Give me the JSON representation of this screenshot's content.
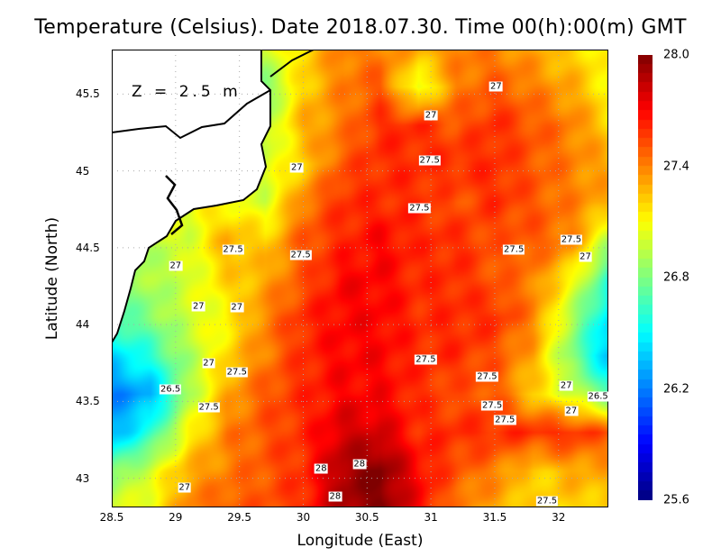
{
  "chart_data": {
    "type": "heatmap",
    "title": "Temperature (Celsius). Date 2018.07.30. Time 00(h):00(m)  GMT",
    "xlabel": "Longitude (East)",
    "ylabel": "Latitude (North)",
    "annotation": "Z = 2.5 m",
    "xlim": [
      28.5,
      32.39
    ],
    "ylim": [
      42.81,
      45.79
    ],
    "xticks": [
      "28.5",
      "29",
      "29.5",
      "30",
      "30.5",
      "31",
      "31.5",
      "32"
    ],
    "xtick_values": [
      28.5,
      29,
      29.5,
      30,
      30.5,
      31,
      31.5,
      32
    ],
    "yticks": [
      "45.5",
      "45",
      "44.5",
      "44",
      "43.5",
      "43"
    ],
    "ytick_values": [
      45.5,
      45,
      44.5,
      44,
      43.5,
      43
    ],
    "grid": true,
    "colorbar": {
      "min": 25.6,
      "max": 28.0,
      "ticks": [
        "28.0",
        "27.4",
        "26.8",
        "26.2",
        "25.6"
      ],
      "tick_values": [
        28.0,
        27.4,
        26.8,
        26.2,
        25.6
      ],
      "colormap": "jet"
    },
    "grid_lon": [
      28.5,
      28.8,
      29.1,
      29.4,
      29.7,
      30.0,
      30.3,
      30.6,
      30.9,
      31.2,
      31.5,
      31.8,
      32.1,
      32.4
    ],
    "grid_lat": [
      45.8,
      45.55,
      45.3,
      45.05,
      44.8,
      44.55,
      44.3,
      44.05,
      43.8,
      43.55,
      43.3,
      43.05,
      42.8
    ],
    "values": [
      [
        null,
        null,
        null,
        null,
        27.0,
        27.2,
        27.4,
        27.4,
        27.3,
        27.4,
        27.4,
        27.3,
        27.2,
        27.1
      ],
      [
        null,
        null,
        null,
        null,
        26.8,
        27.2,
        27.4,
        27.5,
        27.0,
        27.4,
        27.5,
        27.4,
        27.3,
        27.1
      ],
      [
        null,
        null,
        null,
        null,
        26.9,
        27.3,
        27.4,
        27.6,
        27.6,
        27.5,
        27.6,
        27.5,
        27.4,
        27.2
      ],
      [
        null,
        null,
        null,
        null,
        27.0,
        27.2,
        27.5,
        27.6,
        27.6,
        27.6,
        27.6,
        27.5,
        27.4,
        27.3
      ],
      [
        null,
        null,
        null,
        27.1,
        27.0,
        27.4,
        27.6,
        27.6,
        27.6,
        27.5,
        27.6,
        27.5,
        27.4,
        27.3
      ],
      [
        null,
        null,
        27.0,
        27.3,
        27.2,
        27.5,
        27.6,
        27.7,
        27.6,
        27.6,
        27.5,
        27.5,
        27.4,
        26.9
      ],
      [
        null,
        26.9,
        27.0,
        27.2,
        27.3,
        27.5,
        27.7,
        27.7,
        27.6,
        27.6,
        27.5,
        27.4,
        27.1,
        26.6
      ],
      [
        26.7,
        26.8,
        27.0,
        27.1,
        27.4,
        27.6,
        27.7,
        27.7,
        27.6,
        27.6,
        27.6,
        27.4,
        26.9,
        26.4
      ],
      [
        26.4,
        26.6,
        26.9,
        27.2,
        27.4,
        27.6,
        27.7,
        27.7,
        27.6,
        27.6,
        27.5,
        27.3,
        26.8,
        26.3
      ],
      [
        26.2,
        26.3,
        26.9,
        27.3,
        27.5,
        27.6,
        27.7,
        27.7,
        27.6,
        27.5,
        27.5,
        27.2,
        27.0,
        26.7
      ],
      [
        26.3,
        26.6,
        27.1,
        27.4,
        27.5,
        27.6,
        27.8,
        27.8,
        27.6,
        27.6,
        27.6,
        27.6,
        27.6,
        27.5
      ],
      [
        26.8,
        27.0,
        27.3,
        27.4,
        27.5,
        27.6,
        27.9,
        28.0,
        27.7,
        27.5,
        27.4,
        27.2,
        27.3,
        27.3
      ],
      [
        27.0,
        27.1,
        27.4,
        27.5,
        27.5,
        27.6,
        27.9,
        28.0,
        27.7,
        27.4,
        27.3,
        27.2,
        27.2,
        27.2
      ]
    ],
    "contour_labels": [
      {
        "text": "27",
        "lon": 31.51,
        "lat": 45.55
      },
      {
        "text": "27",
        "lon": 31.0,
        "lat": 45.36
      },
      {
        "text": "27",
        "lon": 29.95,
        "lat": 45.02
      },
      {
        "text": "27.5",
        "lon": 30.99,
        "lat": 45.07
      },
      {
        "text": "27.5",
        "lon": 30.91,
        "lat": 44.76
      },
      {
        "text": "27.5",
        "lon": 29.45,
        "lat": 44.49
      },
      {
        "text": "27.5",
        "lon": 29.98,
        "lat": 44.45
      },
      {
        "text": "27.5",
        "lon": 31.65,
        "lat": 44.49
      },
      {
        "text": "27.5",
        "lon": 32.1,
        "lat": 44.55
      },
      {
        "text": "27",
        "lon": 32.21,
        "lat": 44.44
      },
      {
        "text": "27",
        "lon": 29.0,
        "lat": 44.38
      },
      {
        "text": "27",
        "lon": 29.18,
        "lat": 44.12
      },
      {
        "text": "27",
        "lon": 29.48,
        "lat": 44.11
      },
      {
        "text": "27",
        "lon": 29.26,
        "lat": 43.75
      },
      {
        "text": "27.5",
        "lon": 29.48,
        "lat": 43.69
      },
      {
        "text": "26.5",
        "lon": 28.96,
        "lat": 43.58
      },
      {
        "text": "27.5",
        "lon": 29.26,
        "lat": 43.46
      },
      {
        "text": "27.5",
        "lon": 30.96,
        "lat": 43.77
      },
      {
        "text": "27.5",
        "lon": 31.44,
        "lat": 43.66
      },
      {
        "text": "27.5",
        "lon": 31.48,
        "lat": 43.47
      },
      {
        "text": "27.5",
        "lon": 31.58,
        "lat": 43.38
      },
      {
        "text": "27",
        "lon": 32.06,
        "lat": 43.6
      },
      {
        "text": "26.5",
        "lon": 32.31,
        "lat": 43.53
      },
      {
        "text": "27",
        "lon": 32.1,
        "lat": 43.44
      },
      {
        "text": "28",
        "lon": 30.14,
        "lat": 43.06
      },
      {
        "text": "28",
        "lon": 30.44,
        "lat": 43.09
      },
      {
        "text": "28",
        "lon": 30.25,
        "lat": 42.88
      },
      {
        "text": "27",
        "lon": 29.07,
        "lat": 42.94
      },
      {
        "text": "27.5",
        "lon": 31.91,
        "lat": 42.85
      }
    ]
  }
}
